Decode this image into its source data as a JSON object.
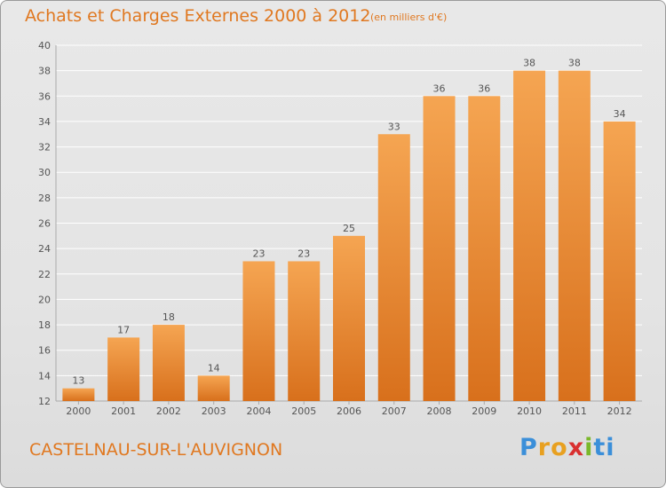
{
  "header": {
    "title": "Achats et Charges Externes 2000 à 2012",
    "subtitle": "(en milliers d'€)"
  },
  "footer": {
    "commune": "CASTELNAU-SUR-L'AUVIGNON",
    "logo_letters": [
      "P",
      "r",
      "o",
      "x",
      "i",
      "ti"
    ]
  },
  "colors": {
    "bar_top": "#f5a552",
    "bar_bottom": "#d8701c",
    "title": "#e07820",
    "grid": "#ffffff"
  },
  "chart_data": {
    "type": "bar",
    "title": "Achats et Charges Externes 2000 à 2012",
    "subtitle": "(en milliers d'€)",
    "categories": [
      "2000",
      "2001",
      "2002",
      "2003",
      "2004",
      "2005",
      "2006",
      "2007",
      "2008",
      "2009",
      "2010",
      "2011",
      "2012"
    ],
    "values": [
      13,
      17,
      18,
      14,
      23,
      23,
      25,
      33,
      36,
      36,
      38,
      38,
      34
    ],
    "data_labels": [
      "13",
      "17",
      "18",
      "14",
      "23",
      "23",
      "25",
      "33",
      "36",
      "36",
      "38",
      "38",
      "34"
    ],
    "ylim": [
      12,
      40
    ],
    "yticks": [
      12,
      14,
      16,
      18,
      20,
      22,
      24,
      26,
      28,
      30,
      32,
      34,
      36,
      38,
      40
    ],
    "ytick_labels": [
      "12",
      "14",
      "16",
      "18",
      "20",
      "22",
      "24",
      "26",
      "28",
      "30",
      "32",
      "34",
      "36",
      "38",
      "40"
    ],
    "xlabel": "",
    "ylabel": "",
    "grid": true,
    "legend": "none"
  }
}
